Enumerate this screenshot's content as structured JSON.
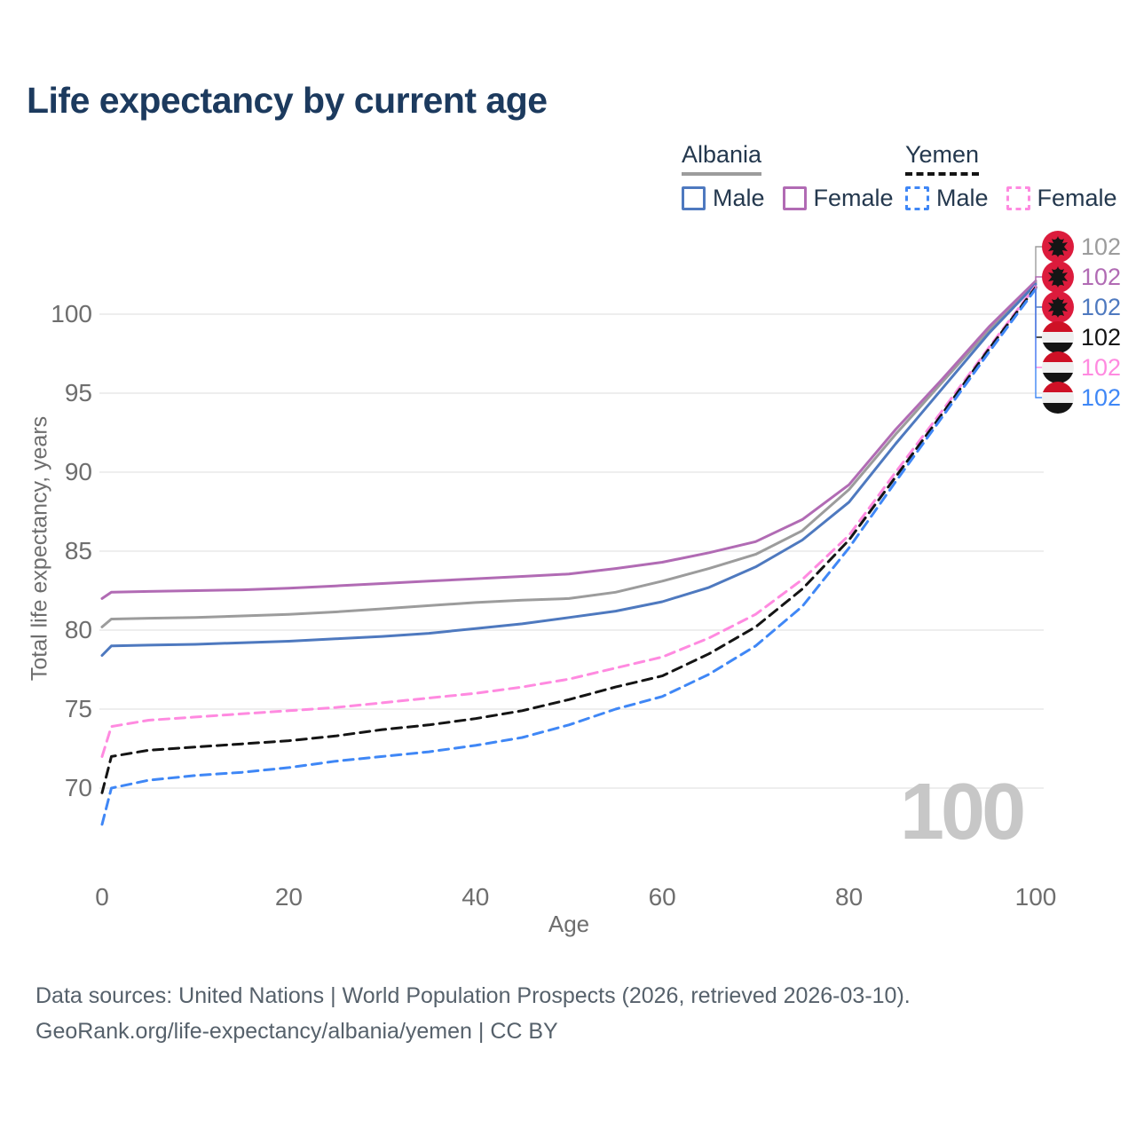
{
  "title": "Life expectancy by current age",
  "legend": {
    "groups": [
      {
        "name": "Albania",
        "style": "solid",
        "line_color": "#9c9c9c",
        "items": [
          {
            "label": "Male",
            "color": "#4e79bf",
            "style": "solid"
          },
          {
            "label": "Female",
            "color": "#b16bb4",
            "style": "solid"
          }
        ]
      },
      {
        "name": "Yemen",
        "style": "dashed",
        "line_color": "#141414",
        "items": [
          {
            "label": "Male",
            "color": "#3f87f6",
            "style": "dashed"
          },
          {
            "label": "Female",
            "color": "#ff8ae0",
            "style": "dashed"
          }
        ]
      }
    ]
  },
  "chart_data": {
    "type": "line",
    "title": "Life expectancy by current age",
    "xlabel": "Age",
    "ylabel": "Total life expectancy, years",
    "xlim": [
      0,
      100
    ],
    "ylim": [
      66,
      103
    ],
    "xticks": [
      0,
      20,
      40,
      60,
      80,
      100
    ],
    "yticks": [
      70,
      75,
      80,
      85,
      90,
      95,
      100
    ],
    "grid": "horizontal-only",
    "legend_position": "top-right",
    "hover_age_label": "100",
    "series": [
      {
        "key": "albania_combined",
        "name": "Albania (both sexes)",
        "country": "Albania",
        "color": "#9c9c9c",
        "style": "solid",
        "points": [
          [
            0,
            80.2
          ],
          [
            1,
            80.7
          ],
          [
            5,
            80.75
          ],
          [
            10,
            80.8
          ],
          [
            15,
            80.9
          ],
          [
            20,
            81.0
          ],
          [
            25,
            81.15
          ],
          [
            30,
            81.35
          ],
          [
            35,
            81.55
          ],
          [
            40,
            81.75
          ],
          [
            45,
            81.9
          ],
          [
            50,
            82.0
          ],
          [
            55,
            82.4
          ],
          [
            60,
            83.1
          ],
          [
            65,
            83.9
          ],
          [
            70,
            84.8
          ],
          [
            75,
            86.3
          ],
          [
            80,
            88.9
          ],
          [
            85,
            92.4
          ],
          [
            90,
            95.7
          ],
          [
            95,
            99.0
          ],
          [
            100,
            102.0
          ]
        ]
      },
      {
        "key": "albania_female",
        "name": "Albania Female",
        "country": "Albania",
        "color": "#b16bb4",
        "style": "solid",
        "points": [
          [
            0,
            82.0
          ],
          [
            1,
            82.4
          ],
          [
            5,
            82.45
          ],
          [
            10,
            82.5
          ],
          [
            15,
            82.55
          ],
          [
            20,
            82.65
          ],
          [
            25,
            82.8
          ],
          [
            30,
            82.95
          ],
          [
            35,
            83.1
          ],
          [
            40,
            83.25
          ],
          [
            45,
            83.4
          ],
          [
            50,
            83.55
          ],
          [
            55,
            83.9
          ],
          [
            60,
            84.3
          ],
          [
            65,
            84.9
          ],
          [
            70,
            85.6
          ],
          [
            75,
            87.0
          ],
          [
            80,
            89.2
          ],
          [
            85,
            92.7
          ],
          [
            90,
            95.9
          ],
          [
            95,
            99.2
          ],
          [
            100,
            102.1
          ]
        ]
      },
      {
        "key": "albania_male",
        "name": "Albania Male",
        "country": "Albania",
        "color": "#4e79bf",
        "style": "solid",
        "points": [
          [
            0,
            78.4
          ],
          [
            1,
            79.0
          ],
          [
            5,
            79.05
          ],
          [
            10,
            79.1
          ],
          [
            15,
            79.2
          ],
          [
            20,
            79.3
          ],
          [
            25,
            79.45
          ],
          [
            30,
            79.6
          ],
          [
            35,
            79.8
          ],
          [
            40,
            80.1
          ],
          [
            45,
            80.4
          ],
          [
            50,
            80.8
          ],
          [
            55,
            81.2
          ],
          [
            60,
            81.8
          ],
          [
            65,
            82.7
          ],
          [
            70,
            84.0
          ],
          [
            75,
            85.7
          ],
          [
            80,
            88.1
          ],
          [
            85,
            91.8
          ],
          [
            90,
            95.3
          ],
          [
            95,
            98.8
          ],
          [
            100,
            101.9
          ]
        ]
      },
      {
        "key": "yemen_female",
        "name": "Yemen Female",
        "country": "Yemen",
        "color": "#ff8ae0",
        "style": "dashed",
        "points": [
          [
            0,
            72.0
          ],
          [
            1,
            73.9
          ],
          [
            5,
            74.3
          ],
          [
            10,
            74.5
          ],
          [
            15,
            74.7
          ],
          [
            20,
            74.9
          ],
          [
            25,
            75.1
          ],
          [
            30,
            75.4
          ],
          [
            35,
            75.7
          ],
          [
            40,
            76.0
          ],
          [
            45,
            76.4
          ],
          [
            50,
            76.9
          ],
          [
            55,
            77.6
          ],
          [
            60,
            78.3
          ],
          [
            65,
            79.5
          ],
          [
            70,
            81.0
          ],
          [
            75,
            83.2
          ],
          [
            80,
            86.0
          ],
          [
            85,
            90.0
          ],
          [
            90,
            93.9
          ],
          [
            95,
            97.9
          ],
          [
            100,
            101.8
          ]
        ]
      },
      {
        "key": "yemen_combined",
        "name": "Yemen (both sexes)",
        "country": "Yemen",
        "color": "#141414",
        "style": "dashed",
        "points": [
          [
            0,
            69.7
          ],
          [
            1,
            72.0
          ],
          [
            5,
            72.4
          ],
          [
            10,
            72.6
          ],
          [
            15,
            72.8
          ],
          [
            20,
            73.0
          ],
          [
            25,
            73.3
          ],
          [
            30,
            73.7
          ],
          [
            35,
            74.0
          ],
          [
            40,
            74.4
          ],
          [
            45,
            74.9
          ],
          [
            50,
            75.6
          ],
          [
            55,
            76.4
          ],
          [
            60,
            77.1
          ],
          [
            65,
            78.5
          ],
          [
            70,
            80.2
          ],
          [
            75,
            82.6
          ],
          [
            80,
            85.7
          ],
          [
            85,
            89.7
          ],
          [
            90,
            93.7
          ],
          [
            95,
            97.8
          ],
          [
            100,
            101.7
          ]
        ]
      },
      {
        "key": "yemen_male",
        "name": "Yemen Male",
        "country": "Yemen",
        "color": "#3f87f6",
        "style": "dashed",
        "points": [
          [
            0,
            67.7
          ],
          [
            1,
            70.0
          ],
          [
            5,
            70.5
          ],
          [
            10,
            70.8
          ],
          [
            15,
            71.0
          ],
          [
            20,
            71.3
          ],
          [
            25,
            71.7
          ],
          [
            30,
            72.0
          ],
          [
            35,
            72.3
          ],
          [
            40,
            72.7
          ],
          [
            45,
            73.2
          ],
          [
            50,
            74.0
          ],
          [
            55,
            75.0
          ],
          [
            60,
            75.8
          ],
          [
            65,
            77.2
          ],
          [
            70,
            79.0
          ],
          [
            75,
            81.5
          ],
          [
            80,
            85.2
          ],
          [
            85,
            89.4
          ],
          [
            90,
            93.5
          ],
          [
            95,
            97.6
          ],
          [
            100,
            101.6
          ]
        ]
      }
    ],
    "end_labels": [
      {
        "series": "albania_combined",
        "flag": "albania",
        "color": "#9c9c9c",
        "value": "102"
      },
      {
        "series": "albania_female",
        "flag": "albania",
        "color": "#b16bb4",
        "value": "102"
      },
      {
        "series": "albania_male",
        "flag": "albania",
        "color": "#4e79bf",
        "value": "102"
      },
      {
        "series": "yemen_combined",
        "flag": "yemen",
        "color": "#141414",
        "value": "102"
      },
      {
        "series": "yemen_female",
        "flag": "yemen",
        "color": "#ff8ae0",
        "value": "102"
      },
      {
        "series": "yemen_male",
        "flag": "yemen",
        "color": "#3f87f6",
        "value": "102"
      }
    ]
  },
  "watermark": "100",
  "footer": {
    "line1": "Data sources: United Nations | World Population Prospects (2026, retrieved 2026-03-10).",
    "line2": "GeoRank.org/life-expectancy/albania/yemen | CC BY"
  }
}
